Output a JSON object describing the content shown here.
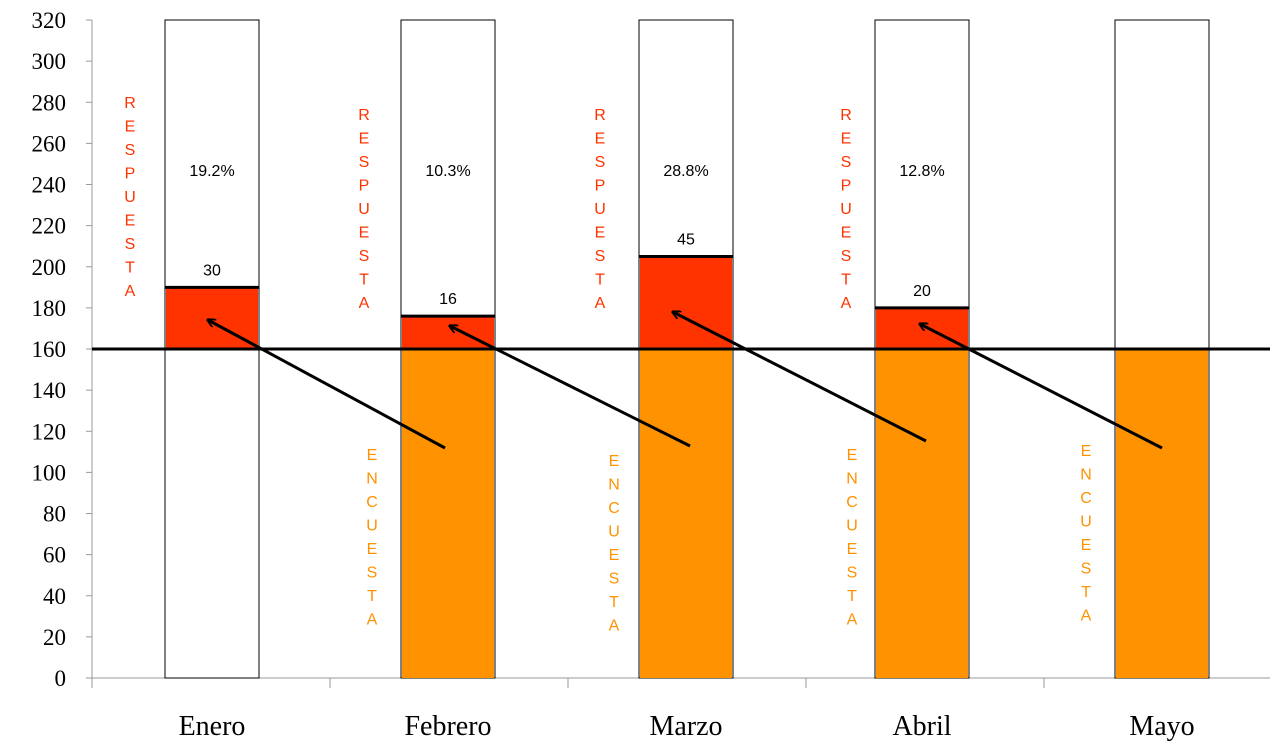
{
  "chart_data": {
    "type": "bar",
    "categories": [
      "Enero",
      "Febrero",
      "Marzo",
      "Abril",
      "Mayo"
    ],
    "ylim": [
      0,
      320
    ],
    "ytick_step": 20,
    "yticks": [
      "0",
      "20",
      "40",
      "60",
      "80",
      "100",
      "120",
      "140",
      "160",
      "180",
      "200",
      "220",
      "240",
      "260",
      "280",
      "300",
      "320"
    ],
    "capacity": 320,
    "reference_line": 160,
    "series": [
      {
        "name": "ENCUESTA",
        "color": "#ff9200",
        "values": [
          0,
          160,
          160,
          160,
          160
        ]
      },
      {
        "name": "RESPUESTA",
        "color": "#ff3300",
        "values": [
          30,
          16,
          45,
          20,
          null
        ]
      }
    ],
    "response_labels": [
      "30",
      "16",
      "45",
      "20",
      null
    ],
    "percent_labels": [
      "19.2%",
      "10.3%",
      "28.8%",
      "12.8%",
      null
    ],
    "vertical_labels": {
      "respuesta": {
        "text": "RESPUESTA",
        "color": "#ff3300"
      },
      "encuesta": {
        "text": "ENCUESTA",
        "color": "#ff9200"
      }
    },
    "grid": false,
    "legend": "none"
  }
}
